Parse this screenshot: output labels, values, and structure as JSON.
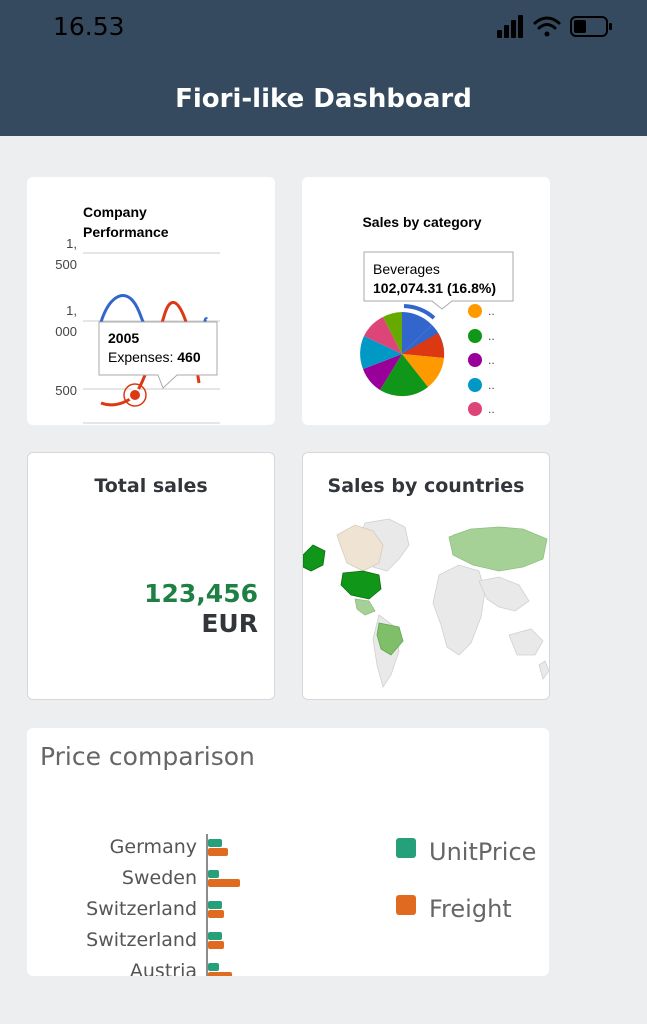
{
  "status_bar": {
    "time": "16.53"
  },
  "header": {
    "title": "Fiori-like Dashboard"
  },
  "company_performance": {
    "title_line1": "Company",
    "title_line2": "Performance",
    "y_ticks": [
      "1,\n500",
      "1,\n000",
      "500"
    ],
    "tooltip": {
      "year": "2005",
      "label": "Expenses:",
      "value": "460"
    }
  },
  "sales_by_category": {
    "title": "Sales by category",
    "tooltip": {
      "name": "Beverages",
      "value": "102,074.31 (16.8%)"
    },
    "legend_items": [
      "..",
      "..",
      "..",
      "..",
      ".."
    ],
    "colors": [
      "#3366cc",
      "#dc3912",
      "#ff9900",
      "#109618",
      "#990099",
      "#0099c6",
      "#dd4477"
    ]
  },
  "total_sales": {
    "title": "Total sales",
    "value": "123,456",
    "unit": "EUR"
  },
  "sales_by_countries": {
    "title": "Sales by countries"
  },
  "price_comparison": {
    "title": "Price comparison",
    "legend": [
      {
        "label": "UnitPrice",
        "color": "#26a07a"
      },
      {
        "label": "Freight",
        "color": "#e06b20"
      }
    ],
    "chart_data": {
      "type": "bar",
      "orientation": "horizontal",
      "categories": [
        "Germany",
        "Sweden",
        "Switzerland",
        "Switzerland",
        "Austria"
      ],
      "series": [
        {
          "name": "UnitPrice",
          "values": [
            14,
            11,
            14,
            14,
            11
          ]
        },
        {
          "name": "Freight",
          "values": [
            20,
            32,
            16,
            16,
            24
          ]
        }
      ]
    }
  }
}
